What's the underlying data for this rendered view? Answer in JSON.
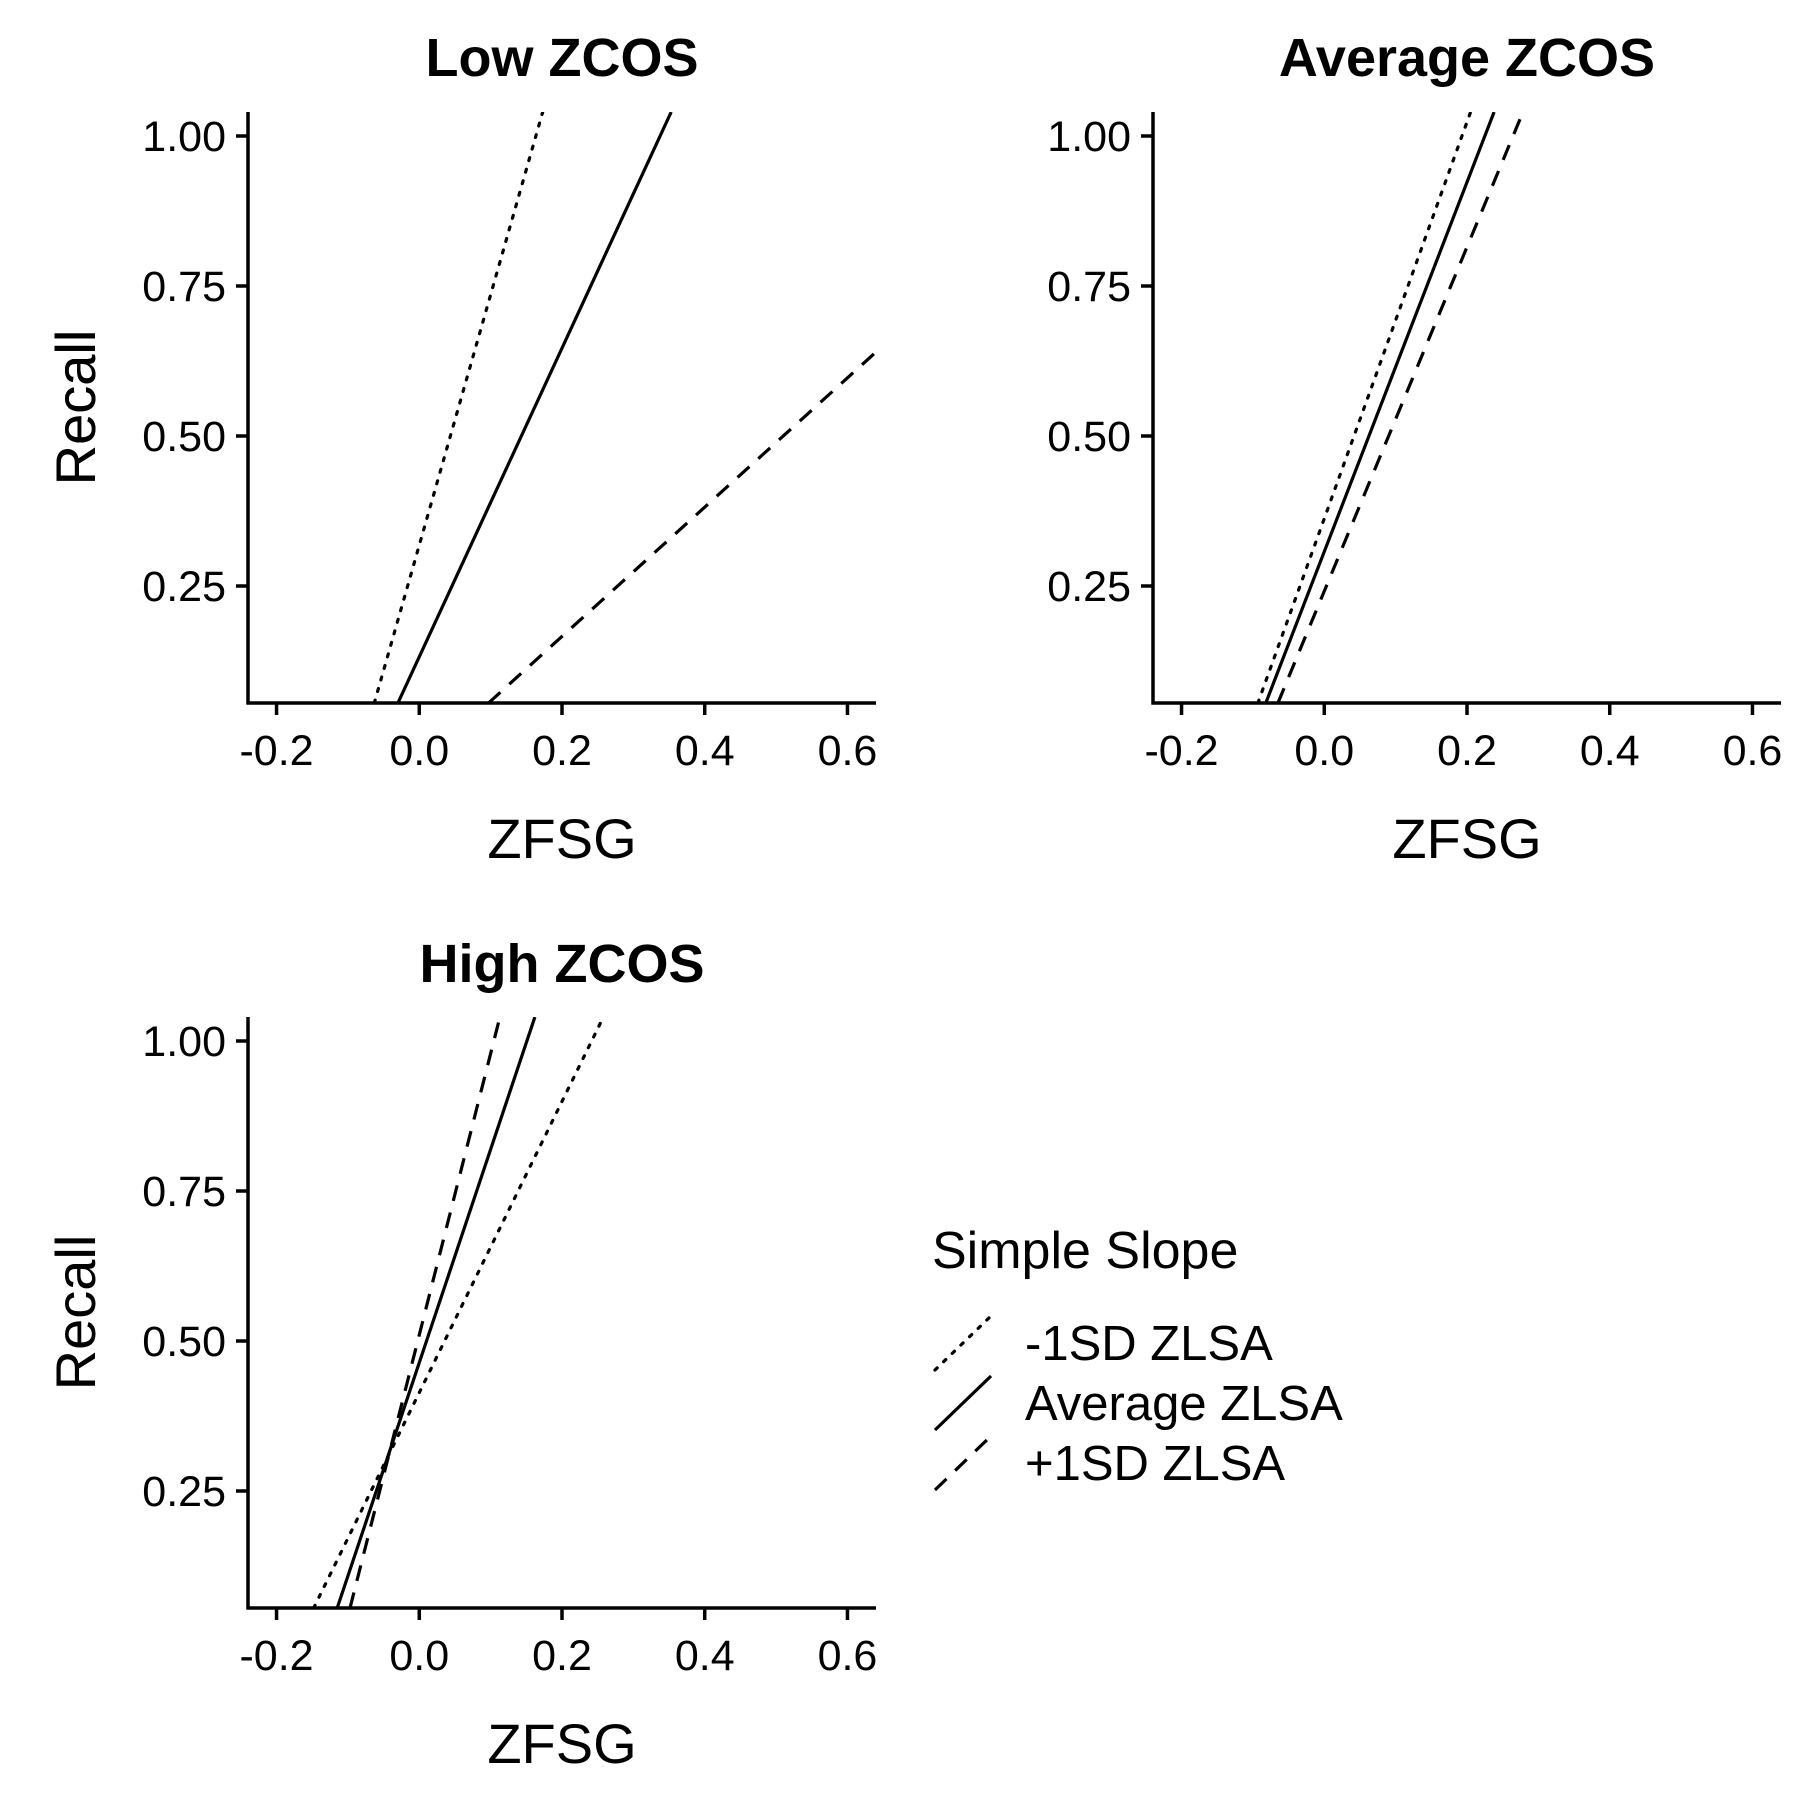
{
  "chart_data": [
    {
      "type": "line",
      "title": "Low ZCOS",
      "xlabel": "ZFSG",
      "ylabel": "Recall",
      "xlim": [
        -0.24,
        0.64
      ],
      "ylim": [
        0.055,
        1.04
      ],
      "xticks": [
        "-0.2",
        "0.0",
        "0.2",
        "0.4",
        "0.6"
      ],
      "yticks": [
        "0.25",
        "0.50",
        "0.75",
        "1.00"
      ],
      "series": [
        {
          "name": "-1SD ZLSA",
          "style": "dotted",
          "x": [
            -0.063,
            0.173
          ],
          "y": [
            0.055,
            1.04
          ]
        },
        {
          "name": "Average ZLSA",
          "style": "solid",
          "x": [
            -0.03,
            0.353
          ],
          "y": [
            0.055,
            1.04
          ]
        },
        {
          "name": "+1SD ZLSA",
          "style": "dashed",
          "x": [
            0.097,
            0.64
          ],
          "y": [
            0.055,
            0.64
          ]
        }
      ]
    },
    {
      "type": "line",
      "title": "Average ZCOS",
      "xlabel": "ZFSG",
      "ylabel": "Recall",
      "xlim": [
        -0.24,
        0.64
      ],
      "ylim": [
        0.055,
        1.04
      ],
      "xticks": [
        "-0.2",
        "0.0",
        "0.2",
        "0.4",
        "0.6"
      ],
      "yticks": [
        "0.25",
        "0.50",
        "0.75",
        "1.00"
      ],
      "series": [
        {
          "name": "-1SD ZLSA",
          "style": "dotted",
          "x": [
            -0.093,
            0.205
          ],
          "y": [
            0.055,
            1.04
          ]
        },
        {
          "name": "Average ZLSA",
          "style": "solid",
          "x": [
            -0.082,
            0.238
          ],
          "y": [
            0.055,
            1.04
          ]
        },
        {
          "name": "+1SD ZLSA",
          "style": "dashed",
          "x": [
            -0.065,
            0.275
          ],
          "y": [
            0.055,
            1.03
          ]
        }
      ]
    },
    {
      "type": "line",
      "title": "High ZCOS",
      "xlabel": "ZFSG",
      "ylabel": "Recall",
      "xlim": [
        -0.24,
        0.64
      ],
      "ylim": [
        0.055,
        1.04
      ],
      "xticks": [
        "-0.2",
        "0.0",
        "0.2",
        "0.4",
        "0.6"
      ],
      "yticks": [
        "0.25",
        "0.50",
        "0.75",
        "1.00"
      ],
      "series": [
        {
          "name": "-1SD ZLSA",
          "style": "dotted",
          "x": [
            -0.148,
            0.258
          ],
          "y": [
            0.055,
            1.04
          ]
        },
        {
          "name": "Average ZLSA",
          "style": "solid",
          "x": [
            -0.115,
            0.162
          ],
          "y": [
            0.055,
            1.04
          ]
        },
        {
          "name": "+1SD ZLSA",
          "style": "dashed",
          "x": [
            -0.097,
            0.113
          ],
          "y": [
            0.055,
            1.04
          ]
        }
      ]
    }
  ],
  "legend": {
    "title": "Simple Slope",
    "placement": "right",
    "items": [
      {
        "label": "-1SD ZLSA",
        "style": "dotted"
      },
      {
        "label": "Average ZLSA",
        "style": "solid"
      },
      {
        "label": "+1SD ZLSA",
        "style": "dashed"
      }
    ]
  },
  "colors": {
    "line": "#000000",
    "background": "#ffffff"
  }
}
